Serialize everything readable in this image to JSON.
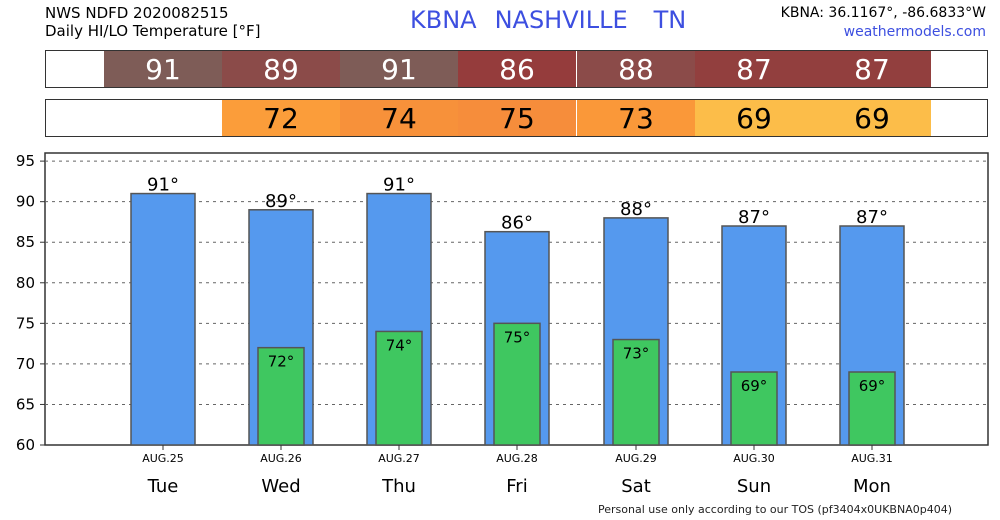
{
  "header": {
    "line1": "NWS NDFD 2020082515",
    "line2": "Daily HI/LO Temperature [°F]",
    "station": "KBNA",
    "city": "NASHVILLE",
    "state": "TN",
    "coords": "KBNA: 36.1167°, -86.6833°W",
    "site": "weathermodels.com"
  },
  "footer": "Personal use only according to our TOS (pf3404x0UKBNA0p404)",
  "hi_strip": [
    {
      "label": "91",
      "color": "#7e5c57"
    },
    {
      "label": "89",
      "color": "#8b4b49"
    },
    {
      "label": "91",
      "color": "#7e5c57"
    },
    {
      "label": "86",
      "color": "#953c3c"
    },
    {
      "label": "88",
      "color": "#8b4b49"
    },
    {
      "label": "87",
      "color": "#923f3e"
    },
    {
      "label": "87",
      "color": "#923f3e"
    }
  ],
  "lo_strip": [
    {
      "label": "",
      "color": "#ffffff"
    },
    {
      "label": "72",
      "color": "#fb9d3a"
    },
    {
      "label": "74",
      "color": "#f7913a"
    },
    {
      "label": "75",
      "color": "#f68d3b"
    },
    {
      "label": "73",
      "color": "#fa9839"
    },
    {
      "label": "69",
      "color": "#fcbd49"
    },
    {
      "label": "69",
      "color": "#fcbd49"
    }
  ],
  "chart_data": {
    "type": "bar",
    "categories": [
      "Tue",
      "Wed",
      "Thu",
      "Fri",
      "Sat",
      "Sun",
      "Mon"
    ],
    "dates": [
      "AUG.25",
      "AUG.26",
      "AUG.27",
      "AUG.28",
      "AUG.29",
      "AUG.30",
      "AUG.31"
    ],
    "series": [
      {
        "values": [
          91,
          89,
          91,
          86.3,
          88,
          87,
          87
        ],
        "labels": [
          "91°",
          "89°",
          "91°",
          "86°",
          "88°",
          "87°",
          "87°"
        ],
        "color": "#5599ee"
      },
      {
        "values": [
          null,
          72,
          74,
          75,
          73,
          69,
          69
        ],
        "labels": [
          "",
          "72°",
          "74°",
          "75°",
          "73°",
          "69°",
          "69°"
        ],
        "color": "#3fc760"
      }
    ],
    "yticks": [
      60,
      65,
      70,
      75,
      80,
      85,
      90,
      95
    ],
    "ylim": [
      60,
      96
    ],
    "grid": true
  }
}
